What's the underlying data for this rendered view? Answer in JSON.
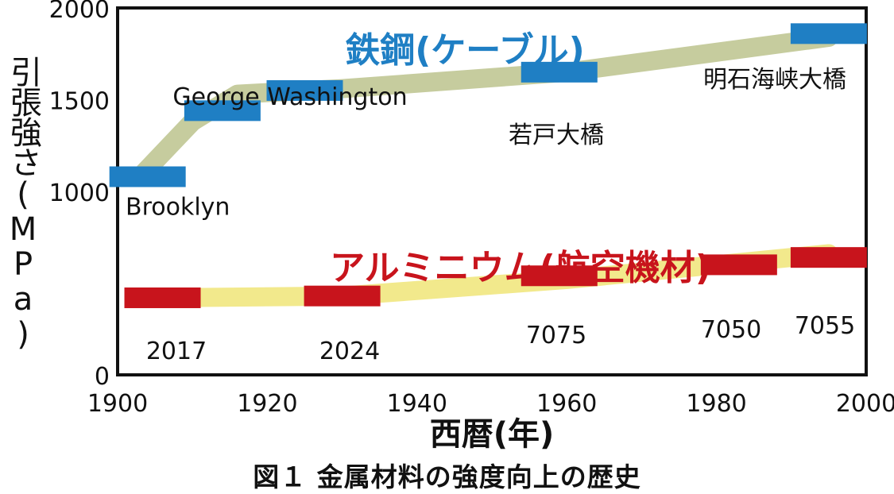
{
  "chart_data": {
    "type": "line",
    "xlabel": "西暦(年)",
    "ylabel": "引張強さ(MPa)",
    "xlim": [
      1900,
      2000
    ],
    "ylim": [
      0,
      2000
    ],
    "x_ticks": [
      "1900",
      "1920",
      "1940",
      "1960",
      "1980",
      "2000"
    ],
    "y_ticks": [
      "0",
      "1000",
      "1500",
      "2000"
    ],
    "grid": false,
    "series": [
      {
        "name": "鉄鋼(ケーブル)",
        "color": "#1f7fc4",
        "band_color": "#c6cc9e",
        "trend": [
          [
            1903,
            1080
          ],
          [
            1910,
            1380
          ],
          [
            1916,
            1530
          ],
          [
            1930,
            1560
          ],
          [
            1960,
            1650
          ],
          [
            1995,
            1840
          ]
        ],
        "points": [
          {
            "label": "Brooklyn",
            "x": 1904,
            "y": 1080
          },
          {
            "label": "",
            "x": 1914,
            "y": 1440
          },
          {
            "label": "George Washington",
            "x": 1925,
            "y": 1550
          },
          {
            "label": "若戸大橋",
            "x": 1959,
            "y": 1650
          },
          {
            "label": "明石海峡大橋",
            "x": 1995,
            "y": 1860
          }
        ]
      },
      {
        "name": "アルミニウム(航空機材)",
        "color": "#c8141c",
        "band_color": "#f2e98c",
        "trend": [
          [
            1906,
            420
          ],
          [
            1930,
            430
          ],
          [
            1960,
            520
          ],
          [
            1995,
            660
          ]
        ],
        "points": [
          {
            "label": "2017",
            "x": 1906,
            "y": 420
          },
          {
            "label": "2024",
            "x": 1930,
            "y": 430
          },
          {
            "label": "7075",
            "x": 1959,
            "y": 540
          },
          {
            "label": "7050",
            "x": 1983,
            "y": 600
          },
          {
            "label": "7055",
            "x": 1995,
            "y": 640
          }
        ]
      }
    ]
  },
  "caption": "図１ 金属材料の強度向上の歴史"
}
